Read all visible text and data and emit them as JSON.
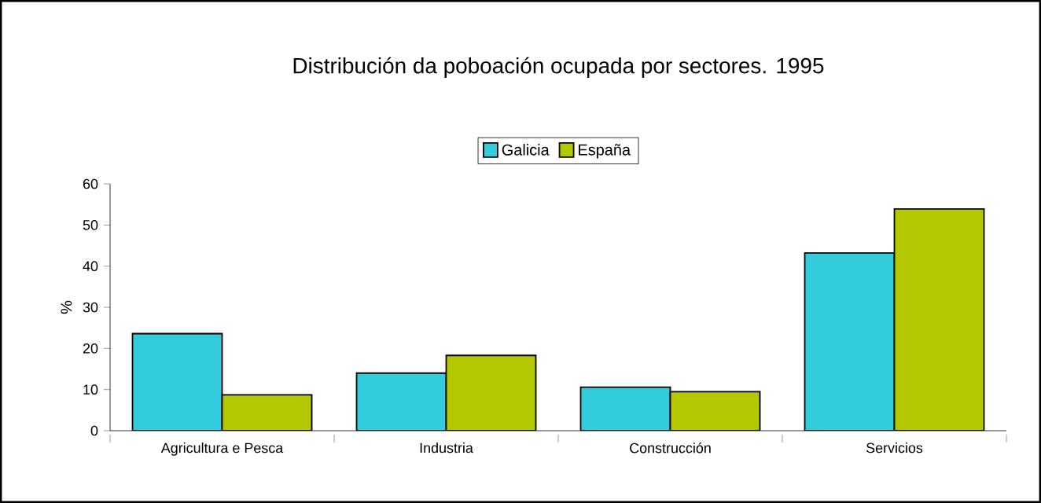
{
  "chart_data": {
    "type": "bar",
    "title": "Distribución da poboación ocupada por sectores. 1995",
    "ylabel": "%",
    "categories": [
      "Agricultura e Pesca",
      "Industria",
      "Construcción",
      "Servicios"
    ],
    "series": [
      {
        "name": "Galicia",
        "color": "#33ccdd",
        "values": [
          23.6,
          14.0,
          10.6,
          43.2
        ]
      },
      {
        "name": "España",
        "color": "#b4c800",
        "values": [
          8.7,
          18.3,
          9.5,
          53.9
        ]
      }
    ],
    "ylim": [
      0,
      60
    ],
    "yticks": [
      0,
      10,
      20,
      30,
      40,
      50,
      60
    ],
    "grid": false,
    "legend": "top"
  }
}
